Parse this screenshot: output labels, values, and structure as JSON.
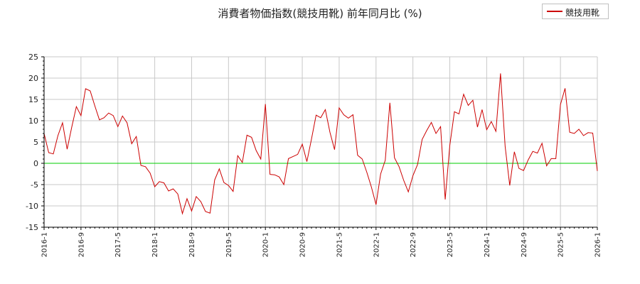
{
  "chart_data": {
    "type": "line",
    "title": "消費者物価指数(競技用靴) 前年同月比 (%)",
    "legend": {
      "position": "top-right",
      "entries": [
        "競技用靴"
      ]
    },
    "ylim": [
      -15,
      25
    ],
    "yticks": [
      25,
      20,
      15,
      10,
      5,
      0,
      -5,
      -10,
      -15
    ],
    "xticks": [
      "2016-1",
      "2016-9",
      "2017-5",
      "2018-1",
      "2018-9",
      "2019-5",
      "2020-1",
      "2020-9",
      "2021-5",
      "2022-1",
      "2022-9",
      "2023-5",
      "2024-1",
      "2024-9",
      "2025-5",
      "2026-1"
    ],
    "x_start": "2016-1",
    "x_end": "2026-1",
    "grid": true,
    "zero_line": true,
    "colors": {
      "series": "#cc0000",
      "zero": "#00cc00",
      "grid": "#c8c8c8",
      "axis": "#000000"
    },
    "series": [
      {
        "name": "競技用靴",
        "values": [
          7.0,
          2.5,
          2.2,
          6.5,
          9.5,
          3.3,
          8.5,
          13.3,
          11.2,
          17.5,
          17.0,
          13.5,
          10.2,
          10.7,
          11.8,
          11.2,
          8.6,
          11.1,
          9.5,
          4.6,
          6.3,
          -0.5,
          -0.8,
          -2.3,
          -5.5,
          -4.3,
          -4.6,
          -6.5,
          -6.0,
          -7.2,
          -11.8,
          -8.3,
          -11.2,
          -7.8,
          -9.0,
          -11.3,
          -11.7,
          -3.9,
          -1.3,
          -4.5,
          -5.2,
          -6.6,
          1.8,
          0.2,
          6.6,
          6.1,
          3.0,
          1.0,
          13.9,
          -2.6,
          -2.7,
          -3.2,
          -5.0,
          1.1,
          1.6,
          2.1,
          4.5,
          0.4,
          5.7,
          11.3,
          10.7,
          12.6,
          7.3,
          3.2,
          13.0,
          11.4,
          10.6,
          11.4,
          1.9,
          1.0,
          -2.1,
          -5.6,
          -9.7,
          -2.5,
          0.7,
          14.2,
          1.3,
          -0.8,
          -4.0,
          -6.7,
          -2.9,
          -0.3,
          5.6,
          7.7,
          9.6,
          7.0,
          8.6,
          -8.5,
          4.2,
          12.1,
          11.6,
          16.2,
          13.6,
          14.8,
          8.5,
          12.6,
          7.9,
          9.8,
          7.5,
          21.1,
          4.0,
          -5.2,
          2.7,
          -1.2,
          -1.7,
          0.8,
          2.8,
          2.4,
          4.7,
          -0.6,
          1.1,
          1.1,
          13.8,
          17.6,
          7.3,
          7.0,
          8.0,
          6.5,
          7.2,
          7.1,
          -1.8
        ]
      }
    ]
  }
}
